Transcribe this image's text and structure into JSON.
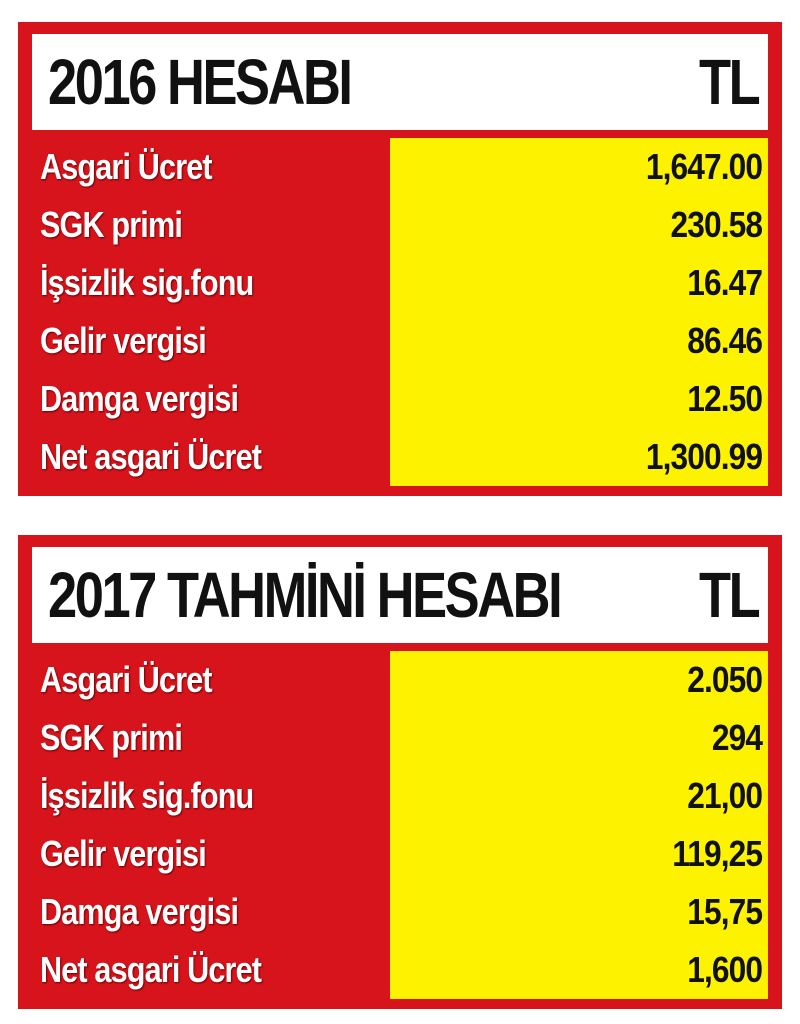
{
  "tables": [
    {
      "title": "2016 HESABI",
      "unit": "TL",
      "rows": [
        [
          "Asgari Ücret",
          "1,647.00"
        ],
        [
          "SGK primi",
          "230.58"
        ],
        [
          "İşsizlik sig.fonu",
          "16.47"
        ],
        [
          "Gelir vergisi",
          "86.46"
        ],
        [
          "Damga vergisi",
          "12.50"
        ],
        [
          "Net asgari Ücret",
          "1,300.99"
        ]
      ]
    },
    {
      "title": "2017 TAHMİNİ HESABI",
      "unit": "TL",
      "rows": [
        [
          "Asgari Ücret",
          "2.050"
        ],
        [
          "SGK primi",
          "294"
        ],
        [
          "İşsizlik sig.fonu",
          "21,00"
        ],
        [
          "Gelir vergisi",
          "119,25"
        ],
        [
          "Damga vergisi",
          "15,75"
        ],
        [
          "Net asgari Ücret",
          "1,600"
        ]
      ]
    }
  ]
}
